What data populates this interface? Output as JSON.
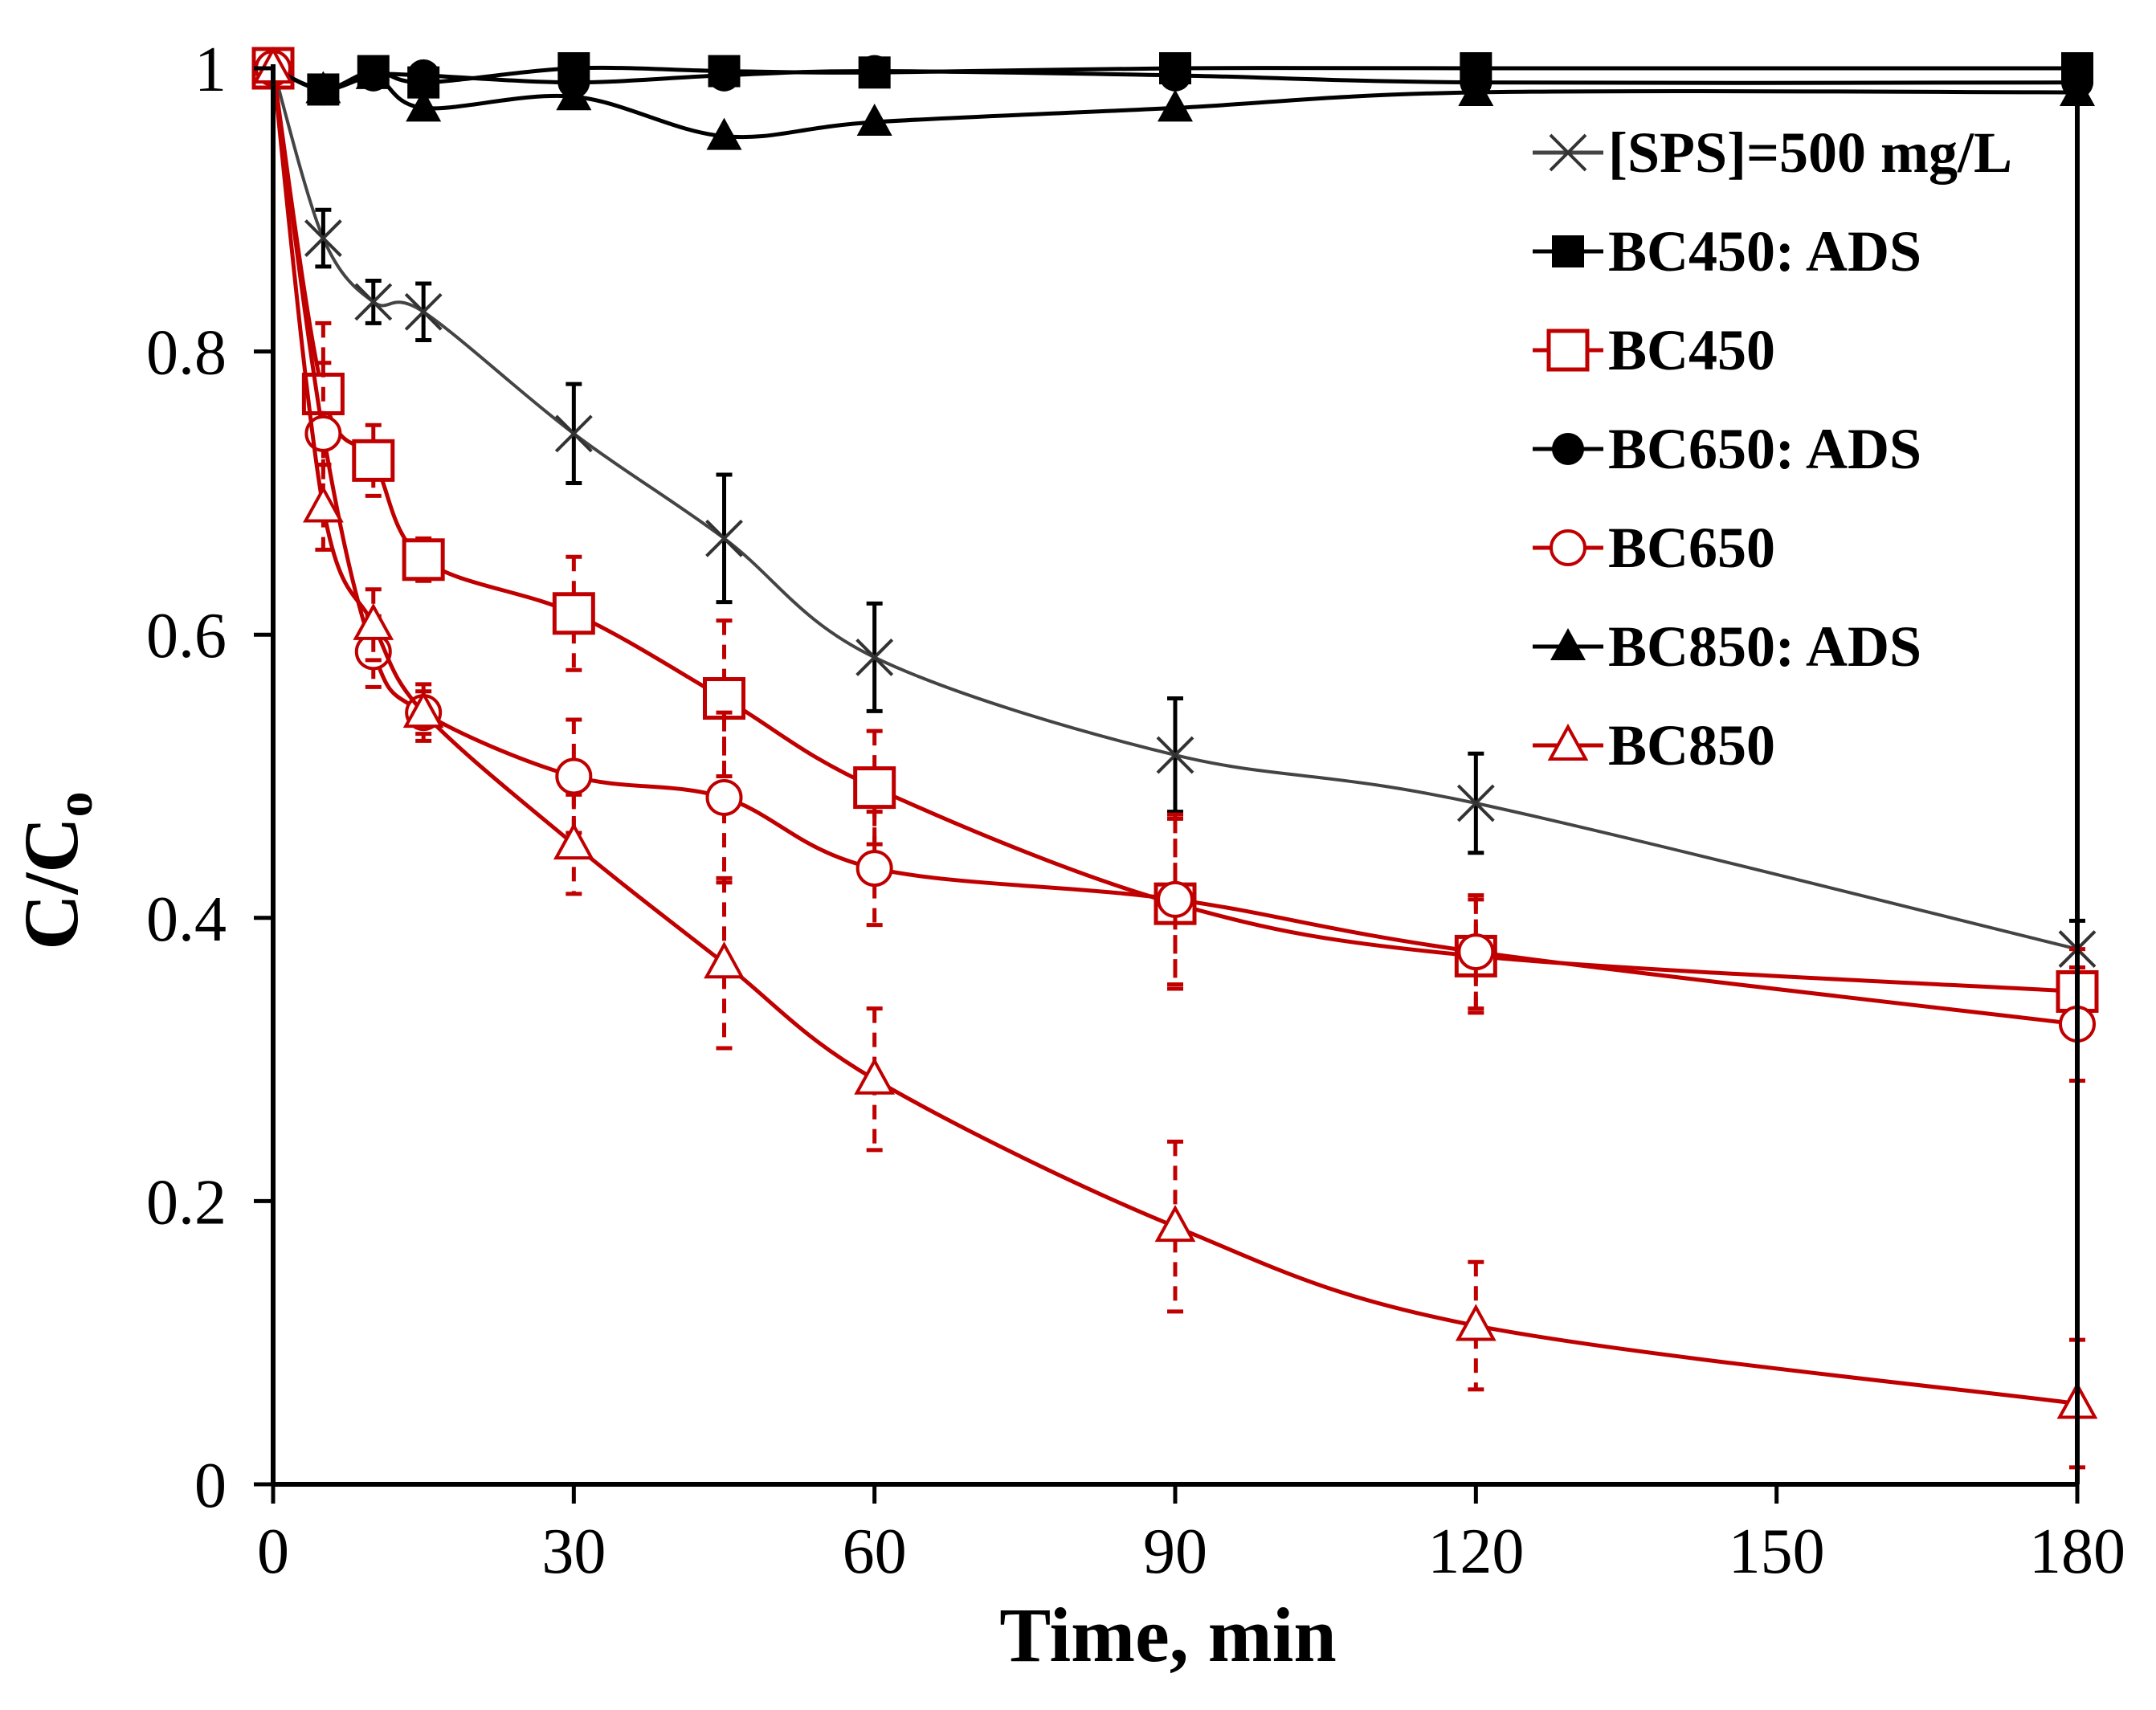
{
  "chart_data": {
    "type": "line",
    "title": "",
    "xlabel": "Time, min",
    "ylabel": "C/C",
    "ylabel_subscript": "o",
    "xlim": [
      0,
      180
    ],
    "ylim": [
      0,
      1
    ],
    "x_ticks": [
      0,
      30,
      60,
      90,
      120,
      150,
      180
    ],
    "x_tick_labels": [
      "0",
      "30",
      "60",
      "90",
      "120",
      "150",
      "180"
    ],
    "y_ticks": [
      0,
      0.2,
      0.4,
      0.6,
      0.8,
      1
    ],
    "y_tick_labels": [
      "0",
      "0.2",
      "0.4",
      "0.6",
      "0.8",
      "1"
    ],
    "grid": false,
    "legend_position": "top-right",
    "series": [
      {
        "name": "[SPS]=500 mg/L",
        "marker": "x",
        "color": "#333333",
        "line_color": "#444444",
        "error_style": "solid",
        "x": [
          0,
          5,
          10,
          15,
          30,
          45,
          60,
          90,
          120,
          180
        ],
        "y": [
          1.0,
          0.88,
          0.835,
          0.828,
          0.742,
          0.668,
          0.584,
          0.515,
          0.481,
          0.378
        ],
        "err": [
          0,
          0.02,
          0.015,
          0.02,
          0.035,
          0.045,
          0.038,
          0.04,
          0.035,
          0.02
        ]
      },
      {
        "name": "BC450: ADS",
        "marker": "square-filled",
        "color": "#000000",
        "line_color": "#000000",
        "error_style": "solid",
        "x": [
          0,
          5,
          10,
          15,
          30,
          45,
          60,
          90,
          120,
          180
        ],
        "y": [
          1.0,
          0.985,
          0.998,
          0.99,
          1.0,
          0.998,
          0.997,
          1.0,
          1.0,
          1.0
        ],
        "err": [
          0,
          0,
          0,
          0,
          0,
          0,
          0,
          0,
          0,
          0
        ]
      },
      {
        "name": "BC450",
        "marker": "square-open",
        "color": "#c00000",
        "line_color": "#c00000",
        "error_style": "dashed",
        "x": [
          0,
          5,
          10,
          15,
          30,
          45,
          60,
          90,
          120,
          180
        ],
        "y": [
          1.0,
          0.77,
          0.723,
          0.653,
          0.615,
          0.555,
          0.492,
          0.41,
          0.373,
          0.348
        ],
        "err": [
          0,
          0.05,
          0.025,
          0.015,
          0.04,
          0.055,
          0.04,
          0.06,
          0.04,
          0.03
        ]
      },
      {
        "name": "BC650: ADS",
        "marker": "circle-filled",
        "color": "#000000",
        "line_color": "#000000",
        "error_style": "solid",
        "x": [
          0,
          5,
          10,
          15,
          30,
          45,
          60,
          90,
          120,
          180
        ],
        "y": [
          1.0,
          0.985,
          0.995,
          0.995,
          0.99,
          0.995,
          0.998,
          0.995,
          0.99,
          0.99
        ],
        "err": [
          0,
          0,
          0,
          0,
          0,
          0,
          0,
          0,
          0,
          0
        ]
      },
      {
        "name": "BC650",
        "marker": "circle-open",
        "color": "#c00000",
        "line_color": "#c00000",
        "error_style": "dashed",
        "x": [
          0,
          5,
          10,
          15,
          30,
          45,
          60,
          90,
          120,
          180
        ],
        "y": [
          1.0,
          0.742,
          0.588,
          0.545,
          0.5,
          0.485,
          0.435,
          0.413,
          0.376,
          0.325
        ],
        "err": [
          0,
          0.05,
          0.025,
          0.015,
          0.04,
          0.06,
          0.04,
          0.06,
          0.04,
          0.04
        ]
      },
      {
        "name": "BC850: ADS",
        "marker": "triangle-filled",
        "color": "#000000",
        "line_color": "#000000",
        "error_style": "solid",
        "x": [
          0,
          5,
          10,
          15,
          30,
          45,
          60,
          90,
          120,
          180
        ],
        "y": [
          1.0,
          0.985,
          0.995,
          0.972,
          0.98,
          0.952,
          0.962,
          0.972,
          0.983,
          0.983
        ],
        "err": [
          0,
          0,
          0,
          0,
          0,
          0,
          0,
          0,
          0,
          0
        ]
      },
      {
        "name": "BC850",
        "marker": "triangle-open",
        "color": "#c00000",
        "line_color": "#c00000",
        "error_style": "dashed",
        "x": [
          0,
          5,
          10,
          15,
          30,
          45,
          60,
          90,
          120,
          180
        ],
        "y": [
          1.0,
          0.69,
          0.607,
          0.545,
          0.452,
          0.368,
          0.286,
          0.182,
          0.112,
          0.057
        ],
        "err": [
          0,
          0.03,
          0.025,
          0.02,
          0.035,
          0.06,
          0.05,
          0.06,
          0.045,
          0.045
        ]
      }
    ]
  }
}
